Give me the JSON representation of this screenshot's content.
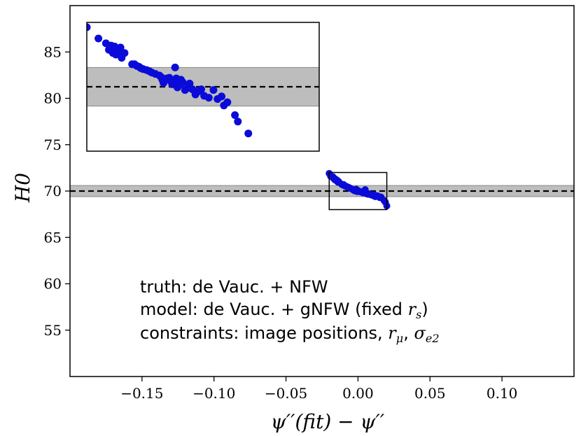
{
  "chart_data": {
    "type": "scatter",
    "title": "",
    "xlabel": "ψ′′(fit) − ψ′′",
    "ylabel": "H0",
    "xlim": [
      -0.2,
      0.15
    ],
    "ylim": [
      50,
      90
    ],
    "grid": false,
    "x_ticks": [
      {
        "value": -0.15,
        "label": "−0.15"
      },
      {
        "value": -0.1,
        "label": "−0.10"
      },
      {
        "value": -0.05,
        "label": "−0.05"
      },
      {
        "value": 0.0,
        "label": "0.00"
      },
      {
        "value": 0.05,
        "label": "0.05"
      },
      {
        "value": 0.1,
        "label": "0.10"
      }
    ],
    "y_ticks": [
      {
        "value": 55,
        "label": "55"
      },
      {
        "value": 60,
        "label": "60"
      },
      {
        "value": 65,
        "label": "65"
      },
      {
        "value": 70,
        "label": "70"
      },
      {
        "value": 75,
        "label": "75"
      },
      {
        "value": 80,
        "label": "80"
      },
      {
        "value": 85,
        "label": "85"
      }
    ],
    "reference_line": {
      "y": 70.0,
      "style": "dashed",
      "color": "#000000"
    },
    "band": {
      "y_low": 69.4,
      "y_high": 70.6,
      "color": "#bdbdbd"
    },
    "zoom_box": {
      "x": [
        -0.02,
        0.02
      ],
      "y": [
        68.0,
        72.0
      ]
    },
    "point_color": "#0b0bd9",
    "points": [
      [
        -0.02,
        71.9
      ],
      [
        -0.019,
        71.6
      ],
      [
        -0.0175,
        71.55
      ],
      [
        -0.0172,
        71.4
      ],
      [
        -0.0162,
        71.35
      ],
      [
        -0.016,
        71.2
      ],
      [
        -0.0158,
        71.3
      ],
      [
        -0.015,
        71.15
      ],
      [
        -0.0148,
        71.2
      ],
      [
        -0.0145,
        71.05
      ],
      [
        -0.014,
        71.1
      ],
      [
        -0.0138,
        70.95
      ],
      [
        -0.0133,
        71.0
      ],
      [
        -0.0115,
        70.75
      ],
      [
        -0.011,
        70.7
      ],
      [
        -0.0105,
        70.65
      ],
      [
        -0.01,
        70.7
      ],
      [
        -0.0095,
        70.6
      ],
      [
        -0.009,
        70.55
      ],
      [
        -0.008,
        70.5
      ],
      [
        -0.0075,
        70.45
      ],
      [
        -0.007,
        70.4
      ],
      [
        -0.0065,
        70.4
      ],
      [
        -0.006,
        70.35
      ],
      [
        -0.0055,
        70.3
      ],
      [
        -0.004,
        70.2
      ],
      [
        -0.0035,
        70.15
      ],
      [
        -0.003,
        70.1
      ],
      [
        -0.0025,
        70.05
      ],
      [
        -0.002,
        70.05
      ],
      [
        -0.0018,
        70.0
      ],
      [
        -0.0015,
        70.15
      ],
      [
        -0.0012,
        70.2
      ],
      [
        -0.001,
        70.0
      ],
      [
        -0.0008,
        70.1
      ],
      [
        -0.0005,
        69.95
      ],
      [
        0.0,
        70.05
      ],
      [
        0.0005,
        70.0
      ],
      [
        0.001,
        69.95
      ],
      [
        0.002,
        69.9
      ],
      [
        0.003,
        69.85
      ],
      [
        0.0035,
        69.8
      ],
      [
        0.004,
        70.0
      ],
      [
        0.005,
        70.15
      ],
      [
        0.0055,
        69.85
      ],
      [
        0.006,
        69.7
      ],
      [
        0.007,
        69.65
      ],
      [
        0.008,
        69.7
      ],
      [
        0.009,
        69.6
      ],
      [
        0.01,
        69.55
      ],
      [
        0.0105,
        69.5
      ],
      [
        0.011,
        69.6
      ],
      [
        0.012,
        69.4
      ],
      [
        0.013,
        69.5
      ],
      [
        0.014,
        69.45
      ],
      [
        0.015,
        69.3
      ],
      [
        0.016,
        69.35
      ],
      [
        0.018,
        69.0
      ],
      [
        0.019,
        68.8
      ],
      [
        0.02,
        68.4
      ]
    ],
    "inset": {
      "x_range": [
        -0.02,
        0.02
      ],
      "y_range": [
        68.0,
        72.0
      ],
      "points": [
        [
          -0.02,
          71.85
        ],
        [
          -0.018,
          71.5
        ],
        [
          -0.0167,
          71.35
        ],
        [
          -0.0162,
          71.15
        ],
        [
          -0.0158,
          71.28
        ],
        [
          -0.0155,
          71.05
        ],
        [
          -0.0152,
          71.25
        ],
        [
          -0.015,
          71.0
        ],
        [
          -0.0148,
          71.15
        ],
        [
          -0.0145,
          71.05
        ],
        [
          -0.0142,
          71.22
        ],
        [
          -0.014,
          70.9
        ],
        [
          -0.0135,
          71.05
        ],
        [
          -0.0122,
          70.7
        ],
        [
          -0.0118,
          70.7
        ],
        [
          -0.0114,
          70.65
        ],
        [
          -0.011,
          70.62
        ],
        [
          -0.0107,
          70.58
        ],
        [
          -0.0103,
          70.55
        ],
        [
          -0.0097,
          70.52
        ],
        [
          -0.0092,
          70.48
        ],
        [
          -0.0088,
          70.44
        ],
        [
          -0.0082,
          70.4
        ],
        [
          -0.0075,
          70.35
        ],
        [
          -0.0072,
          70.3
        ],
        [
          -0.007,
          70.22
        ],
        [
          -0.0068,
          70.12
        ],
        [
          -0.0066,
          70.2
        ],
        [
          -0.0062,
          70.26
        ],
        [
          -0.0058,
          70.28
        ],
        [
          -0.0055,
          70.16
        ],
        [
          -0.0053,
          70.08
        ],
        [
          -0.005,
          70.12
        ],
        [
          -0.0048,
          70.6
        ],
        [
          -0.0046,
          70.26
        ],
        [
          -0.0044,
          69.98
        ],
        [
          -0.0041,
          70.06
        ],
        [
          -0.0038,
          70.22
        ],
        [
          -0.0035,
          70.14
        ],
        [
          -0.0031,
          69.9
        ],
        [
          -0.0027,
          69.96
        ],
        [
          -0.0023,
          70.1
        ],
        [
          -0.0018,
          69.92
        ],
        [
          -0.0013,
          69.76
        ],
        [
          -0.0008,
          69.86
        ],
        [
          -0.0003,
          69.92
        ],
        [
          0.0002,
          69.72
        ],
        [
          0.001,
          69.66
        ],
        [
          0.0018,
          69.9
        ],
        [
          0.0025,
          69.62
        ],
        [
          0.0032,
          69.7
        ],
        [
          0.0036,
          69.42
        ],
        [
          0.0042,
          69.52
        ],
        [
          0.0055,
          69.12
        ],
        [
          0.006,
          68.92
        ],
        [
          0.0078,
          68.55
        ]
      ]
    },
    "annotations": [
      {
        "text": "truth: de Vauc. + NFW"
      },
      {
        "text": "model: de Vauc. + gNFW (fixed ",
        "math": "r",
        "sub": "s",
        "tail": ")"
      },
      {
        "text": "constraints: image positions, ",
        "math": "r",
        "sub": "μ",
        "sep": ", ",
        "math2": "σ",
        "sub2": "e2"
      }
    ]
  }
}
